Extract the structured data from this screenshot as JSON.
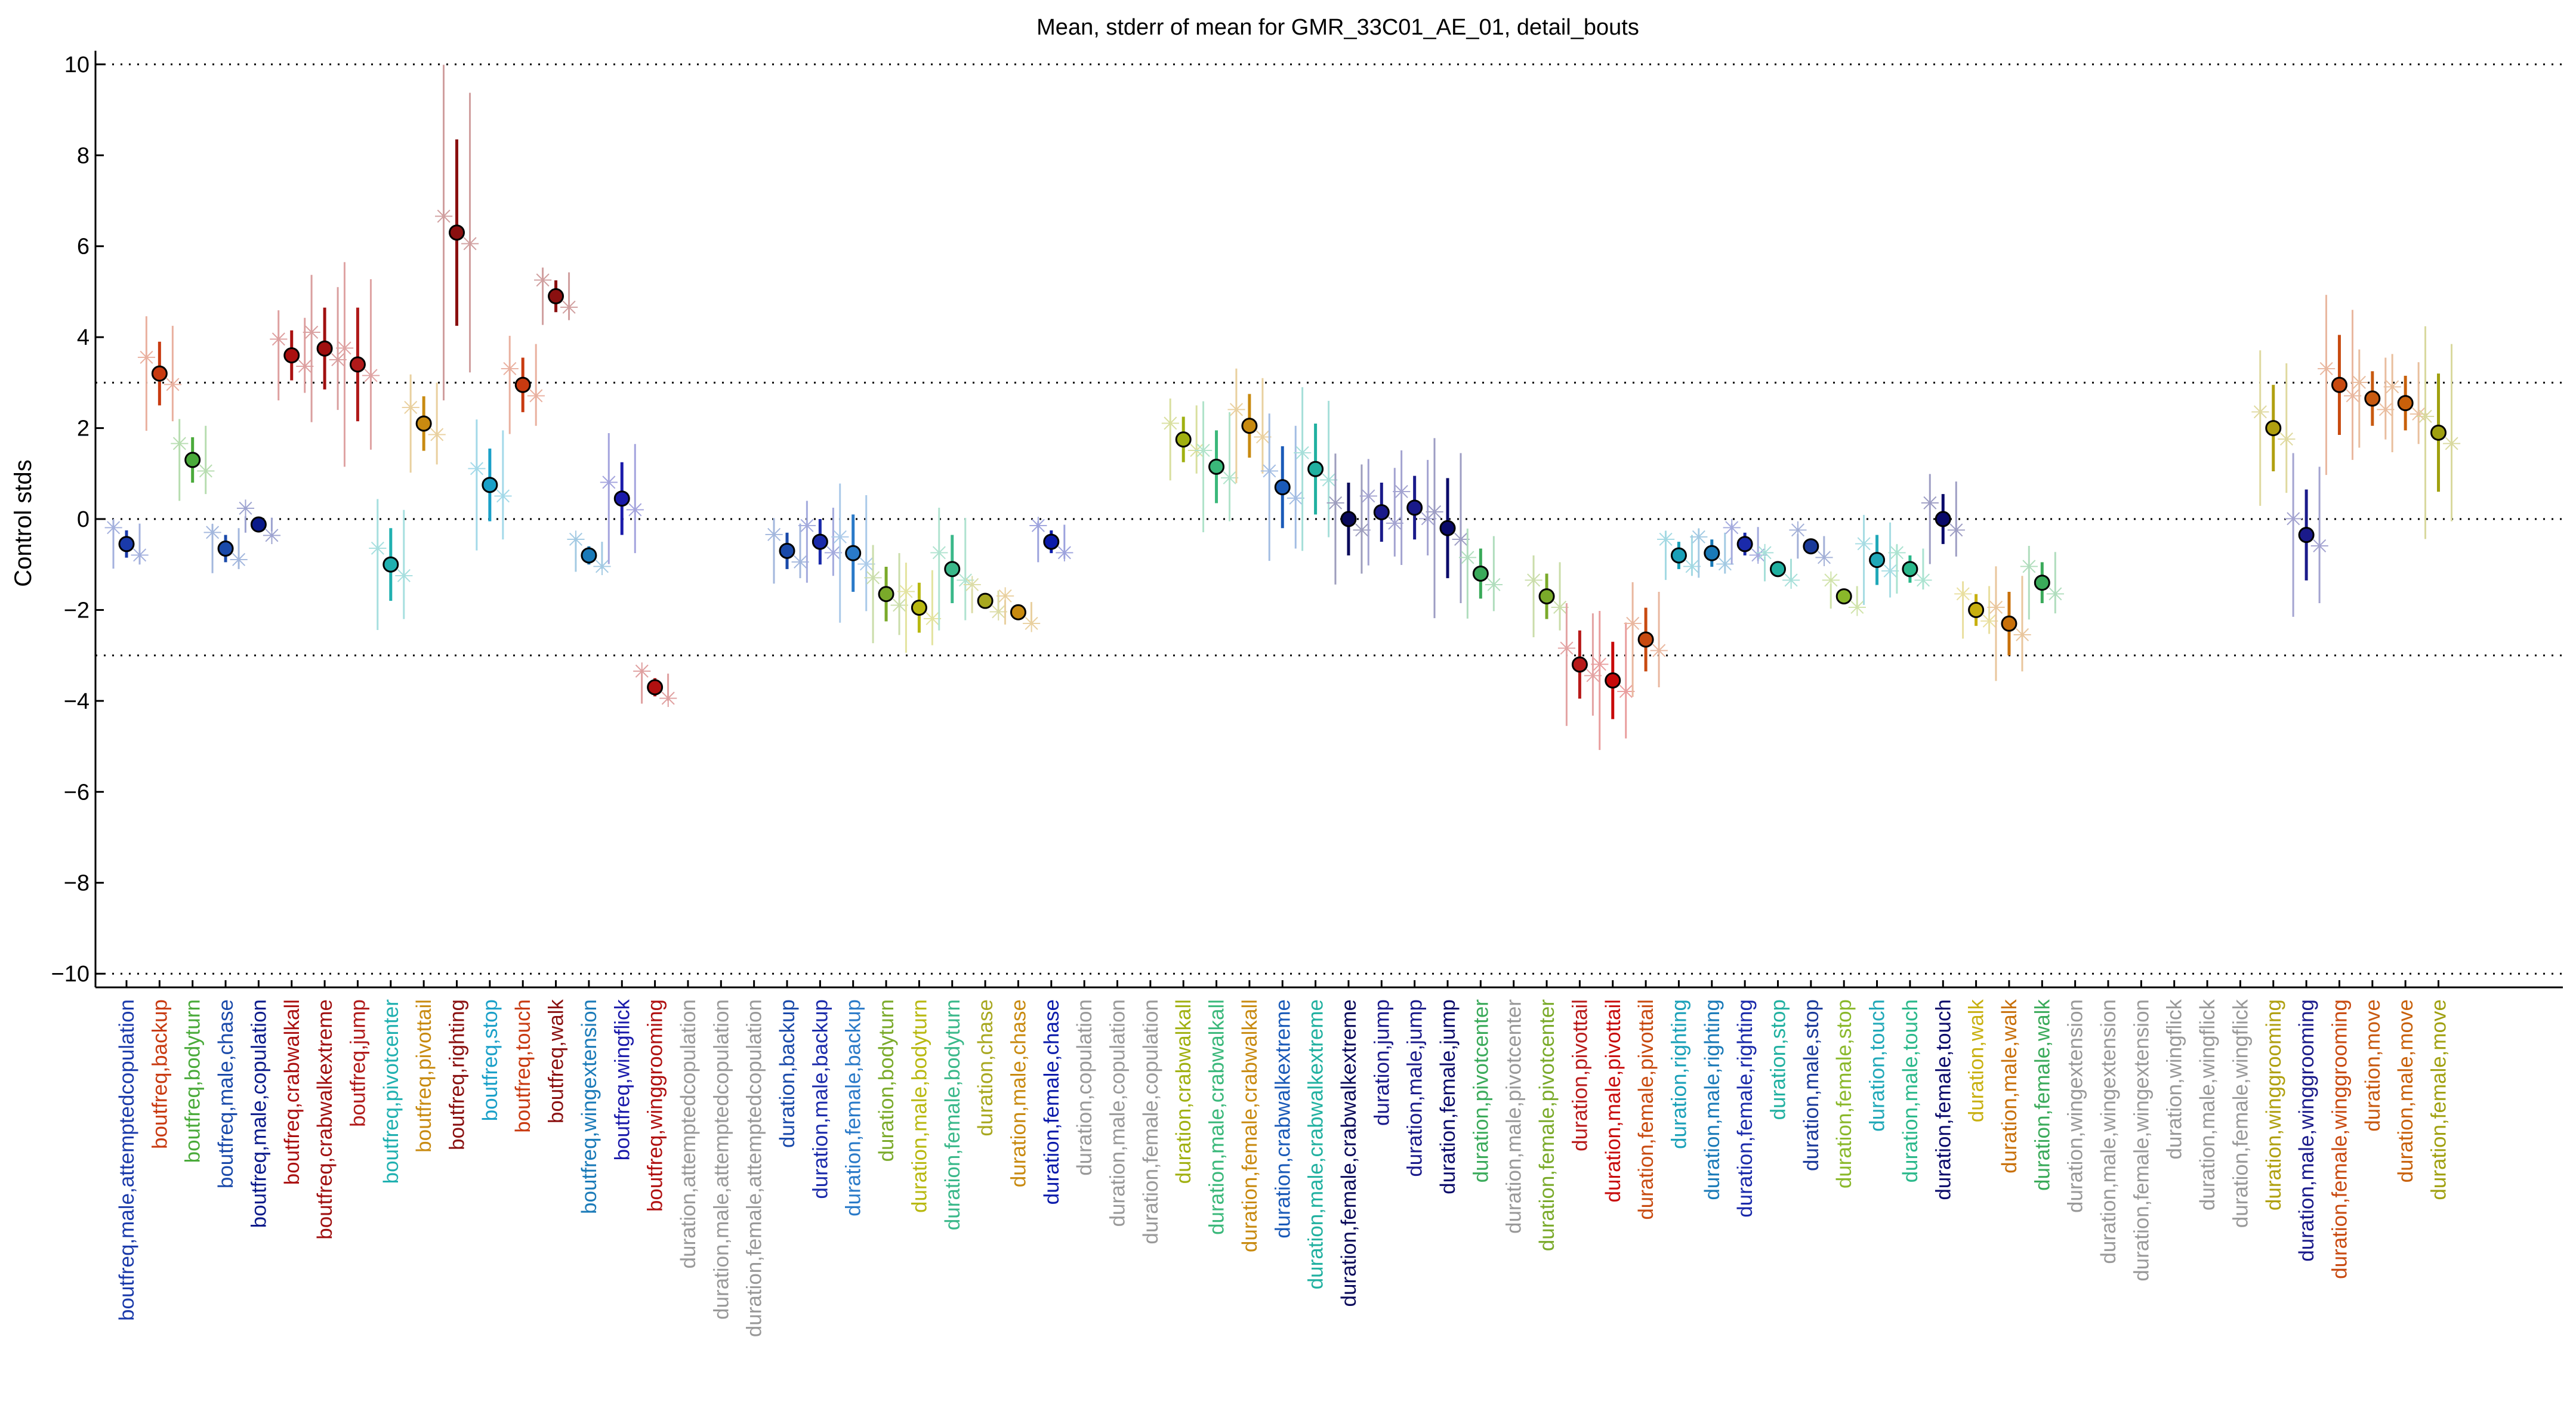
{
  "chart_data": {
    "type": "scatter",
    "title": "Mean, stderr of mean for GMR_33C01_AE_01, detail_bouts",
    "ylabel": "Control stds",
    "xlabel": "",
    "ylim": [
      -10.3,
      10.3
    ],
    "yticks": [
      10,
      8,
      6,
      4,
      2,
      0,
      -2,
      -4,
      -6,
      -8,
      -10
    ],
    "ytick_labels": [
      "10",
      "8",
      "6",
      "4",
      "2",
      "0",
      "−2",
      "−4",
      "−6",
      "−8",
      "−10"
    ],
    "reference_lines": [
      10,
      3,
      0,
      -3,
      -10
    ],
    "grid": false,
    "categories": [
      {
        "label": "boutfreq,male,attemptedcopulation",
        "color": "#1a3aaa",
        "mean": -0.55,
        "err": 0.3
      },
      {
        "label": "boutfreq,backup",
        "color": "#c83a10",
        "mean": 3.2,
        "err": 0.7
      },
      {
        "label": "boutfreq,bodyturn",
        "color": "#4aaa3a",
        "mean": 1.3,
        "err": 0.5
      },
      {
        "label": "boutfreq,male,chase",
        "color": "#1a4aaa",
        "mean": -0.65,
        "err": 0.3
      },
      {
        "label": "boutfreq,male,copulation",
        "color": "#0a1a8a",
        "mean": -0.12,
        "err": 0.1
      },
      {
        "label": "boutfreq,crabwalkall",
        "color": "#aa1010",
        "mean": 3.6,
        "err": 0.55
      },
      {
        "label": "boutfreq,crabwalkextreme",
        "color": "#a01010",
        "mean": 3.75,
        "err": 0.9
      },
      {
        "label": "boutfreq,jump",
        "color": "#b01a1a",
        "mean": 3.4,
        "err": 1.25
      },
      {
        "label": "boutfreq,pivotcenter",
        "color": "#20b0b0",
        "mean": -1.0,
        "err": 0.8
      },
      {
        "label": "boutfreq,pivottail",
        "color": "#c88a10",
        "mean": 2.1,
        "err": 0.6
      },
      {
        "label": "boutfreq,righting",
        "color": "#8a1010",
        "mean": 6.3,
        "err": 2.05
      },
      {
        "label": "boutfreq,stop",
        "color": "#1aa0c8",
        "mean": 0.75,
        "err": 0.8
      },
      {
        "label": "boutfreq,touch",
        "color": "#c83a10",
        "mean": 2.95,
        "err": 0.6
      },
      {
        "label": "boutfreq,walk",
        "color": "#8a1010",
        "mean": 4.9,
        "err": 0.35
      },
      {
        "label": "boutfreq,wingextension",
        "color": "#1a7ab8",
        "mean": -0.8,
        "err": 0.2
      },
      {
        "label": "boutfreq,wingflick",
        "color": "#1a1aaa",
        "mean": 0.45,
        "err": 0.8
      },
      {
        "label": "boutfreq,winggrooming",
        "color": "#b01010",
        "mean": -3.7,
        "err": 0.2
      },
      {
        "label": "duration,attemptedcopulation",
        "color": "#999999"
      },
      {
        "label": "duration,male,attemptedcopulation",
        "color": "#999999"
      },
      {
        "label": "duration,female,attemptedcopulation",
        "color": "#999999"
      },
      {
        "label": "duration,backup",
        "color": "#1a4aaa",
        "mean": -0.7,
        "err": 0.4
      },
      {
        "label": "duration,male,backup",
        "color": "#1a2aaa",
        "mean": -0.5,
        "err": 0.5
      },
      {
        "label": "duration,female,backup",
        "color": "#2a7ac8",
        "mean": -0.75,
        "err": 0.85
      },
      {
        "label": "duration,bodyturn",
        "color": "#7aaa2a",
        "mean": -1.65,
        "err": 0.6
      },
      {
        "label": "duration,male,bodyturn",
        "color": "#b8b810",
        "mean": -1.95,
        "err": 0.55
      },
      {
        "label": "duration,female,bodyturn",
        "color": "#3ab88a",
        "mean": -1.1,
        "err": 0.75
      },
      {
        "label": "duration,chase",
        "color": "#a8a820",
        "mean": -1.8,
        "err": 0.15
      },
      {
        "label": "duration,male,chase",
        "color": "#c88a10",
        "mean": -2.05,
        "err": 0.15
      },
      {
        "label": "duration,female,chase",
        "color": "#0a1aaa",
        "mean": -0.5,
        "err": 0.25
      },
      {
        "label": "duration,copulation",
        "color": "#999999"
      },
      {
        "label": "duration,male,copulation",
        "color": "#999999"
      },
      {
        "label": "duration,female,copulation",
        "color": "#999999"
      },
      {
        "label": "duration,crabwalkall",
        "color": "#a0b010",
        "mean": 1.75,
        "err": 0.5
      },
      {
        "label": "duration,male,crabwalkall",
        "color": "#3ab87a",
        "mean": 1.15,
        "err": 0.8
      },
      {
        "label": "duration,female,crabwalkall",
        "color": "#c88a10",
        "mean": 2.05,
        "err": 0.7
      },
      {
        "label": "duration,crabwalkextreme",
        "color": "#1a5ab8",
        "mean": 0.7,
        "err": 0.9
      },
      {
        "label": "duration,male,crabwalkextreme",
        "color": "#20b0a0",
        "mean": 1.1,
        "err": 1.0
      },
      {
        "label": "duration,female,crabwalkextreme",
        "color": "#0a0a5a",
        "mean": 0.0,
        "err": 0.8
      },
      {
        "label": "duration,jump",
        "color": "#1a1a8a",
        "mean": 0.15,
        "err": 0.65
      },
      {
        "label": "duration,male,jump",
        "color": "#1a1a8a",
        "mean": 0.25,
        "err": 0.7
      },
      {
        "label": "duration,female,jump",
        "color": "#0a0a6a",
        "mean": -0.2,
        "err": 1.1
      },
      {
        "label": "duration,pivotcenter",
        "color": "#3aaa5a",
        "mean": -1.2,
        "err": 0.55
      },
      {
        "label": "duration,male,pivotcenter",
        "color": "#999999"
      },
      {
        "label": "duration,female,pivotcenter",
        "color": "#7aaa2a",
        "mean": -1.7,
        "err": 0.5
      },
      {
        "label": "duration,pivottail",
        "color": "#b81a1a",
        "mean": -3.2,
        "err": 0.75
      },
      {
        "label": "duration,male,pivottail",
        "color": "#c80a0a",
        "mean": -3.55,
        "err": 0.85
      },
      {
        "label": "duration,female,pivottail",
        "color": "#c84a10",
        "mean": -2.65,
        "err": 0.7
      },
      {
        "label": "duration,righting",
        "color": "#1aa0b8",
        "mean": -0.8,
        "err": 0.3
      },
      {
        "label": "duration,male,righting",
        "color": "#1a7ab8",
        "mean": -0.75,
        "err": 0.3
      },
      {
        "label": "duration,female,righting",
        "color": "#1a2aaa",
        "mean": -0.55,
        "err": 0.25
      },
      {
        "label": "duration,stop",
        "color": "#20b0a0",
        "mean": -1.1,
        "err": 0.15
      },
      {
        "label": "duration,male,stop",
        "color": "#1a3a9a",
        "mean": -0.6,
        "err": 0.15
      },
      {
        "label": "duration,female,stop",
        "color": "#8ab82a",
        "mean": -1.7,
        "err": 0.15
      },
      {
        "label": "duration,touch",
        "color": "#20a8b8",
        "mean": -0.9,
        "err": 0.55
      },
      {
        "label": "duration,male,touch",
        "color": "#2ab88a",
        "mean": -1.1,
        "err": 0.3
      },
      {
        "label": "duration,female,touch",
        "color": "#0a0a6a",
        "mean": 0.0,
        "err": 0.55
      },
      {
        "label": "duration,walk",
        "color": "#c8b010",
        "mean": -2.0,
        "err": 0.35
      },
      {
        "label": "duration,male,walk",
        "color": "#c8700a",
        "mean": -2.3,
        "err": 0.7
      },
      {
        "label": "duration,female,walk",
        "color": "#3aaa5a",
        "mean": -1.4,
        "err": 0.45
      },
      {
        "label": "duration,wingextension",
        "color": "#999999"
      },
      {
        "label": "duration,male,wingextension",
        "color": "#999999"
      },
      {
        "label": "duration,female,wingextension",
        "color": "#999999"
      },
      {
        "label": "duration,wingflick",
        "color": "#999999"
      },
      {
        "label": "duration,male,wingflick",
        "color": "#999999"
      },
      {
        "label": "duration,female,wingflick",
        "color": "#999999"
      },
      {
        "label": "duration,winggrooming",
        "color": "#b0a010",
        "mean": 2.0,
        "err": 0.95
      },
      {
        "label": "duration,male,winggrooming",
        "color": "#1a1a8a",
        "mean": -0.35,
        "err": 1.0
      },
      {
        "label": "duration,female,winggrooming",
        "color": "#c84a10",
        "mean": 2.95,
        "err": 1.1
      },
      {
        "label": "duration,move",
        "color": "#c85a10",
        "mean": 2.65,
        "err": 0.6
      },
      {
        "label": "duration,male,move",
        "color": "#c8600a",
        "mean": 2.55,
        "err": 0.6
      },
      {
        "label": "duration,female,move",
        "color": "#a0a010",
        "mean": 1.9,
        "err": 1.3
      }
    ]
  }
}
